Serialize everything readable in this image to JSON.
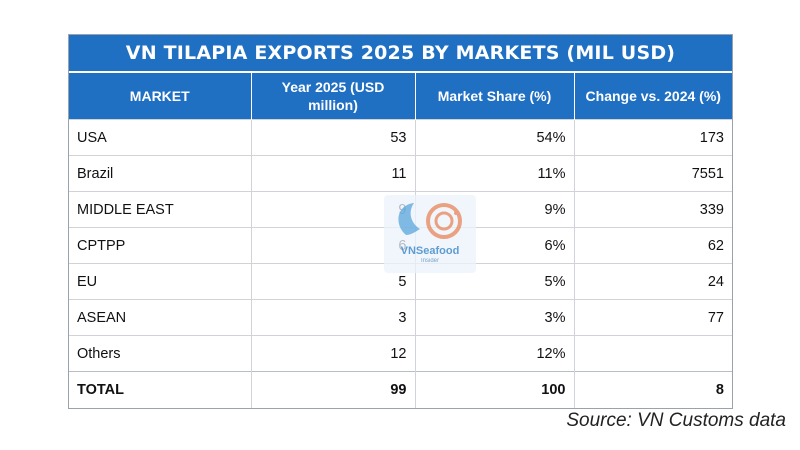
{
  "chart_data": {
    "type": "table",
    "title": "VN TILAPIA EXPORTS 2025 BY MARKETS (MIL USD)",
    "columns": [
      "MARKET",
      "Year 2025 (USD million)",
      "Market Share (%)",
      "Change vs. 2024 (%)"
    ],
    "rows": [
      [
        "USA",
        "53",
        "54%",
        "173"
      ],
      [
        "Brazil",
        "11",
        "11%",
        "7551"
      ],
      [
        "MIDDLE EAST",
        "9",
        "9%",
        "339"
      ],
      [
        "CPTPP",
        "6",
        "6%",
        "62"
      ],
      [
        "EU",
        "5",
        "5%",
        "24"
      ],
      [
        "ASEAN",
        "3",
        "3%",
        "77"
      ],
      [
        "Others",
        "12",
        "12%",
        ""
      ]
    ],
    "total": [
      "TOTAL",
      "99",
      "100",
      "8"
    ]
  },
  "watermark": {
    "text": "VNSeafood",
    "subtext": "Insider"
  },
  "source": "Source: VN Customs data",
  "colors": {
    "header_bg": "#1f6fc3",
    "header_text": "#ffffff"
  }
}
